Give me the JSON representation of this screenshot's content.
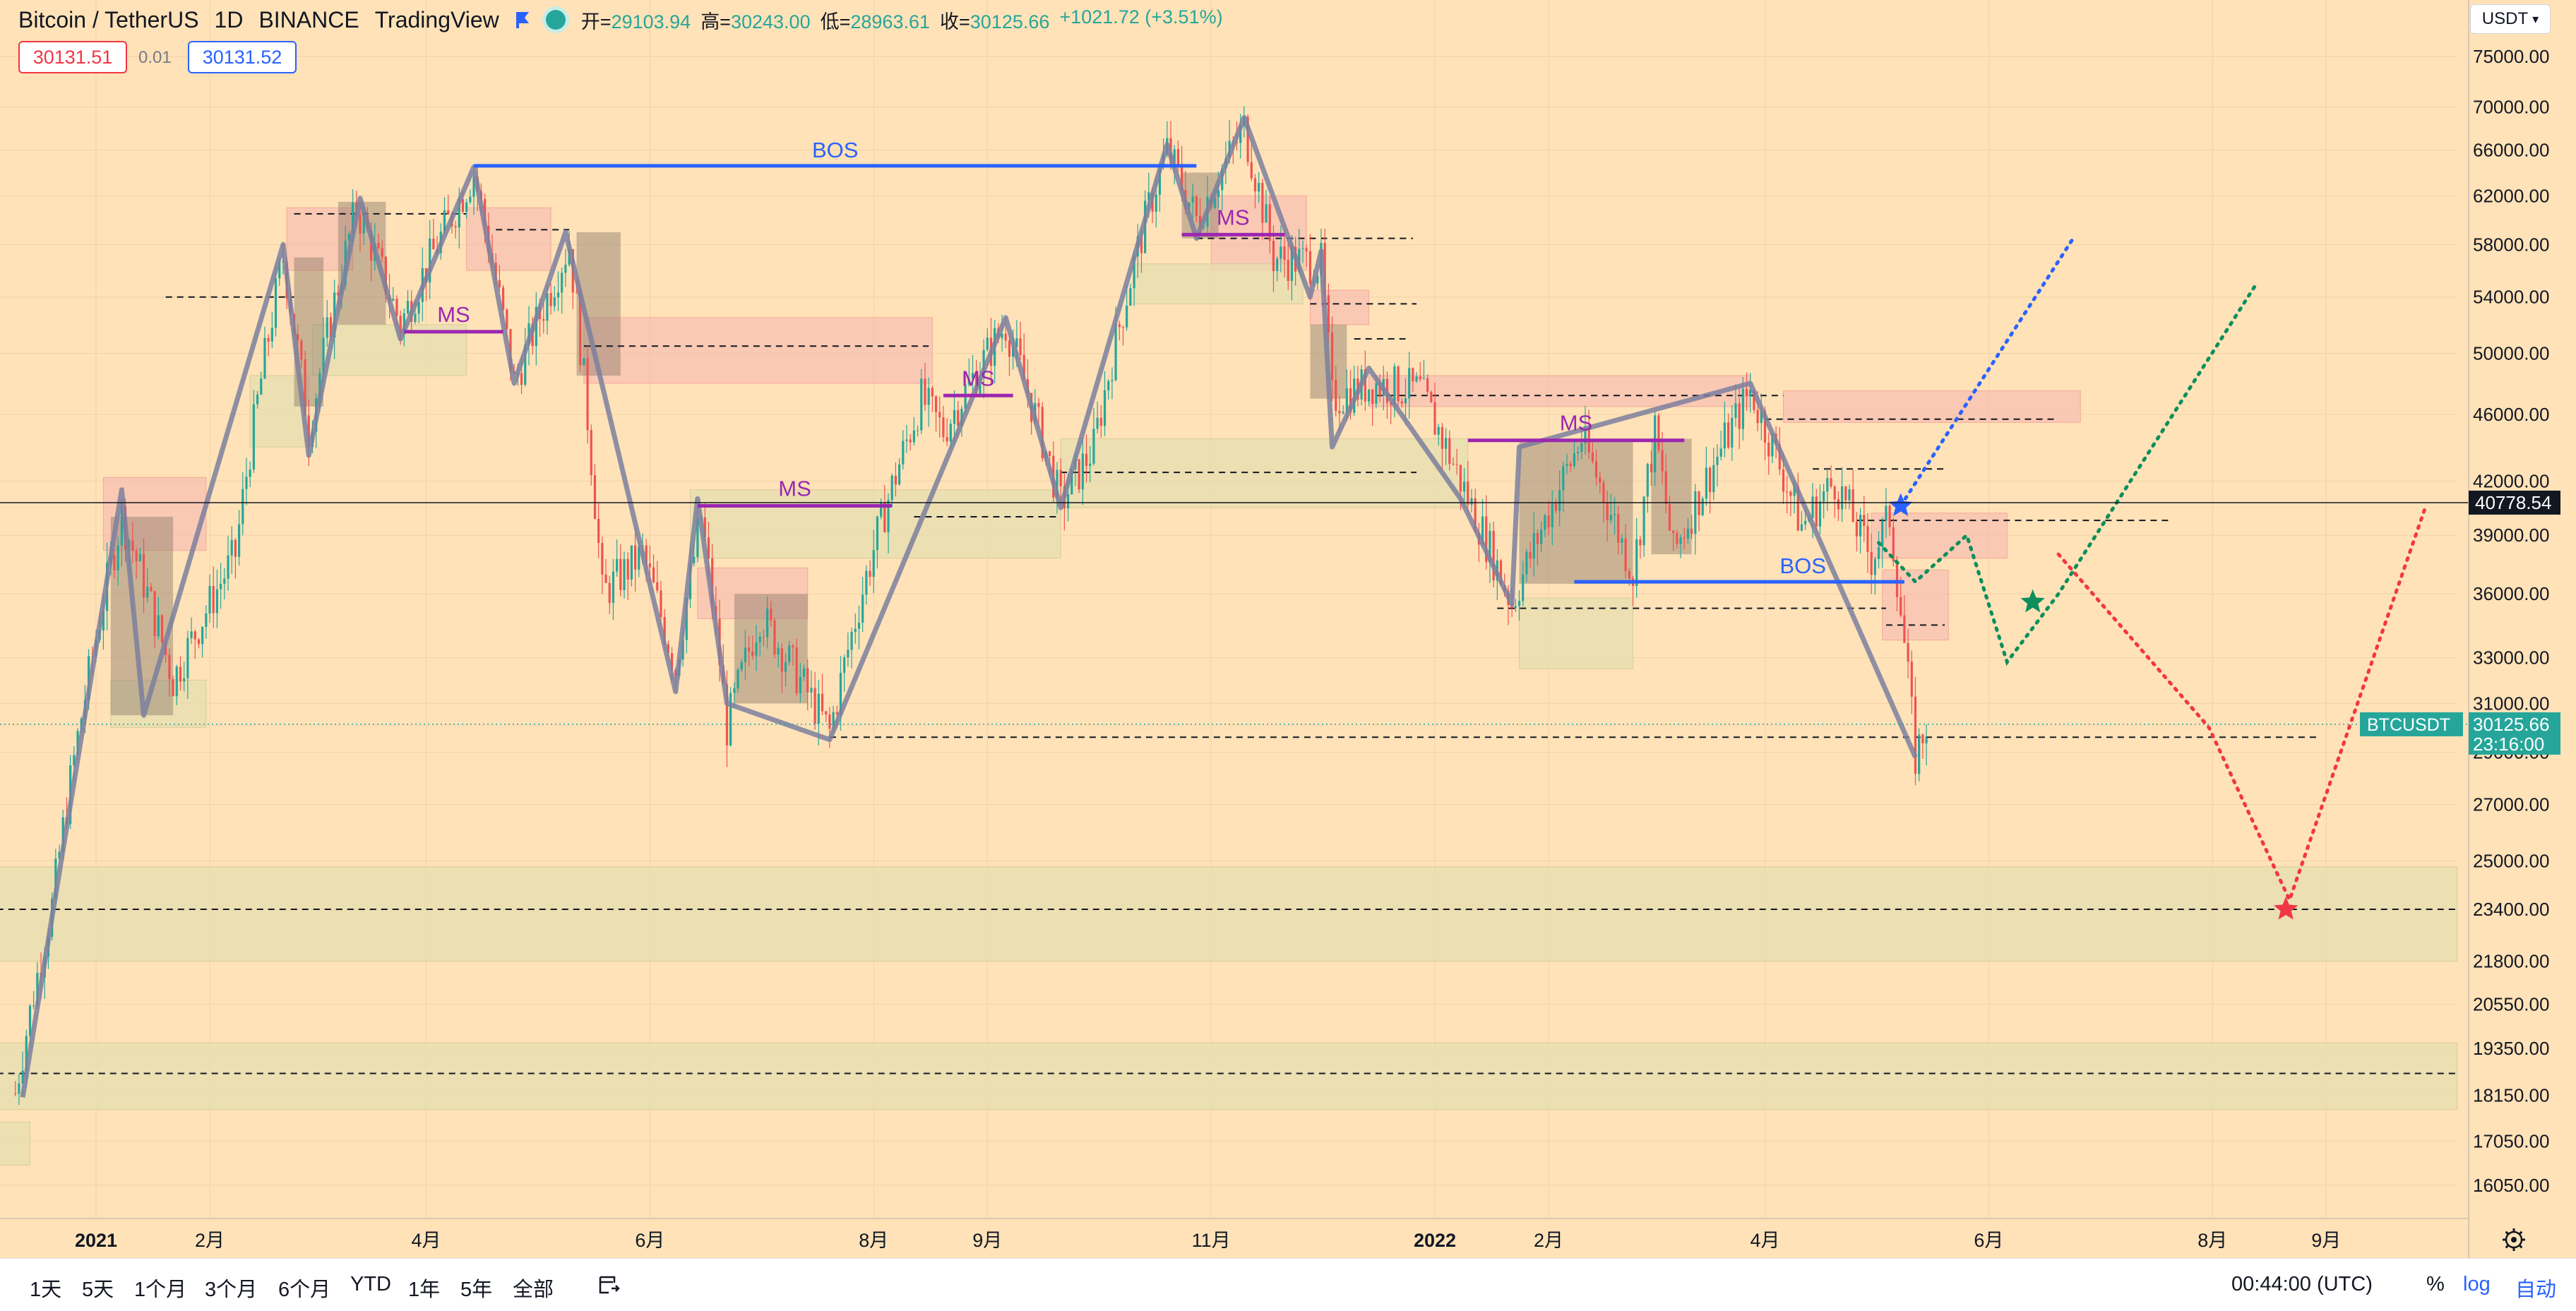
{
  "header": {
    "symbol": "Bitcoin / TetherUS",
    "interval": "1D",
    "exchange": "BINANCE",
    "platform": "TradingView",
    "ohlc": {
      "open_label": "开=",
      "open": "29103.94",
      "high_label": "高=",
      "high": "30243.00",
      "low_label": "低=",
      "low": "28963.61",
      "close_label": "收=",
      "close": "30125.66",
      "change": "+1021.72 (+3.51%)"
    },
    "sell_price": "30131.51",
    "spread": "0.01",
    "buy_price": "30131.52"
  },
  "currency_selector": "USDT",
  "colors": {
    "up": "#26a69a",
    "down": "#ef5350",
    "structure": "#7b7f9e",
    "bos": "#2962ff",
    "ms": "#9c27b0",
    "supply": "#f8bcb0",
    "demand": "#e5ddb0"
  },
  "chart_data": {
    "type": "candlestick",
    "scale": "log",
    "y_ticks": [
      "16050.00",
      "17050.00",
      "18150.00",
      "19350.00",
      "20550.00",
      "21800.00",
      "23400.00",
      "25000.00",
      "27000.00",
      "29000.00",
      "31000.00",
      "33000.00",
      "36000.00",
      "39000.00",
      "42000.00",
      "46000.00",
      "50000.00",
      "54000.00",
      "58000.00",
      "62000.00",
      "66000.00",
      "70000.00",
      "75000.00"
    ],
    "y_ticks_values": [
      16050,
      17050,
      18150,
      19350,
      20550,
      21800,
      23400,
      25000,
      27000,
      29000,
      31000,
      33000,
      36000,
      39000,
      42000,
      46000,
      50000,
      54000,
      58000,
      62000,
      66000,
      70000,
      75000
    ],
    "x_ticks": [
      {
        "label": "2021",
        "date": "2021-01-01",
        "bold": true
      },
      {
        "label": "2月",
        "date": "2021-02-01"
      },
      {
        "label": "4月",
        "date": "2021-04-01"
      },
      {
        "label": "6月",
        "date": "2021-06-01"
      },
      {
        "label": "8月",
        "date": "2021-08-01"
      },
      {
        "label": "9月",
        "date": "2021-09-01"
      },
      {
        "label": "11月",
        "date": "2021-11-01"
      },
      {
        "label": "2022",
        "date": "2022-01-01",
        "bold": true
      },
      {
        "label": "2月",
        "date": "2022-02-01"
      },
      {
        "label": "4月",
        "date": "2022-04-01"
      },
      {
        "label": "6月",
        "date": "2022-06-01"
      },
      {
        "label": "8月",
        "date": "2022-08-01"
      },
      {
        "label": "9月",
        "date": "2022-09-01"
      }
    ],
    "price_path": [
      [
        "2020-12-10",
        18200
      ],
      [
        "2020-12-20",
        23500
      ],
      [
        "2021-01-08",
        40000
      ],
      [
        "2021-01-22",
        32000
      ],
      [
        "2021-02-08",
        38000
      ],
      [
        "2021-02-21",
        57000
      ],
      [
        "2021-02-28",
        45000
      ],
      [
        "2021-03-13",
        61000
      ],
      [
        "2021-03-25",
        52000
      ],
      [
        "2021-04-14",
        64000
      ],
      [
        "2021-04-25",
        48000
      ],
      [
        "2021-05-10",
        58000
      ],
      [
        "2021-05-19",
        36000
      ],
      [
        "2021-05-30",
        38000
      ],
      [
        "2021-06-08",
        32500
      ],
      [
        "2021-06-15",
        40000
      ],
      [
        "2021-06-22",
        30000
      ],
      [
        "2021-07-01",
        35000
      ],
      [
        "2021-07-20",
        29800
      ],
      [
        "2021-08-02",
        39000
      ],
      [
        "2021-08-14",
        47000
      ],
      [
        "2021-08-20",
        45000
      ],
      [
        "2021-09-06",
        52000
      ],
      [
        "2021-09-21",
        40700
      ],
      [
        "2021-09-30",
        44000
      ],
      [
        "2021-10-15",
        61000
      ],
      [
        "2021-10-20",
        66000
      ],
      [
        "2021-10-28",
        60000
      ],
      [
        "2021-11-10",
        68000
      ],
      [
        "2021-11-18",
        57000
      ],
      [
        "2021-12-01",
        56500
      ],
      [
        "2021-12-04",
        47000
      ],
      [
        "2021-12-15",
        48000
      ],
      [
        "2021-12-28",
        47500
      ],
      [
        "2022-01-10",
        41000
      ],
      [
        "2022-01-22",
        35500
      ],
      [
        "2022-01-24",
        36500
      ],
      [
        "2022-02-10",
        44500
      ],
      [
        "2022-02-24",
        37000
      ],
      [
        "2022-03-02",
        44800
      ],
      [
        "2022-03-07",
        38000
      ],
      [
        "2022-03-28",
        47500
      ],
      [
        "2022-04-11",
        39500
      ],
      [
        "2022-04-20",
        42000
      ],
      [
        "2022-04-30",
        37800
      ],
      [
        "2022-05-05",
        40000
      ],
      [
        "2022-05-12",
        28800
      ],
      [
        "2022-05-15",
        30125
      ]
    ],
    "structure_line": [
      [
        "2020-12-12",
        18100
      ],
      [
        "2021-01-08",
        41500
      ],
      [
        "2021-01-14",
        30500
      ],
      [
        "2021-02-21",
        58000
      ],
      [
        "2021-02-28",
        43500
      ],
      [
        "2021-03-14",
        61800
      ],
      [
        "2021-03-25",
        51000
      ],
      [
        "2021-04-14",
        64500
      ],
      [
        "2021-04-25",
        48000
      ],
      [
        "2021-05-09",
        59000
      ],
      [
        "2021-06-08",
        31500
      ],
      [
        "2021-06-14",
        41000
      ],
      [
        "2021-06-22",
        31000
      ],
      [
        "2021-07-20",
        29500
      ],
      [
        "2021-09-06",
        52500
      ],
      [
        "2021-09-21",
        40500
      ],
      [
        "2021-10-20",
        66500
      ],
      [
        "2021-10-28",
        58500
      ],
      [
        "2021-11-10",
        69000
      ],
      [
        "2021-11-28",
        54000
      ],
      [
        "2021-12-01",
        57500
      ],
      [
        "2021-12-04",
        44000
      ],
      [
        "2021-12-14",
        49000
      ],
      [
        "2022-01-08",
        41000
      ],
      [
        "2022-01-22",
        35500
      ],
      [
        "2022-01-24",
        44000
      ],
      [
        "2022-03-28",
        48000
      ],
      [
        "2022-05-12",
        28800
      ]
    ],
    "zones": [
      {
        "kind": "supply",
        "from": "2021-01-03",
        "to": "2021-01-31",
        "low": 38200,
        "high": 42200
      },
      {
        "kind": "supply",
        "from": "2021-02-22",
        "to": "2021-03-12",
        "low": 56000,
        "high": 61000
      },
      {
        "kind": "supply",
        "from": "2021-04-12",
        "to": "2021-05-05",
        "low": 56000,
        "high": 61000
      },
      {
        "kind": "supply",
        "from": "2021-05-14",
        "to": "2021-08-17",
        "low": 48000,
        "high": 52500
      },
      {
        "kind": "supply",
        "from": "2021-06-14",
        "to": "2021-07-14",
        "low": 34800,
        "high": 37300
      },
      {
        "kind": "supply",
        "from": "2021-11-01",
        "to": "2021-11-27",
        "low": 56000,
        "high": 62000
      },
      {
        "kind": "supply",
        "from": "2021-11-28",
        "to": "2021-12-14",
        "low": 52000,
        "high": 54500
      },
      {
        "kind": "supply",
        "from": "2021-12-14",
        "to": "2022-03-28",
        "low": 46500,
        "high": 48500
      },
      {
        "kind": "supply",
        "from": "2022-04-06",
        "to": "2022-06-26",
        "low": 45500,
        "high": 47500
      },
      {
        "kind": "supply",
        "from": "2022-04-30",
        "to": "2022-06-06",
        "low": 37800,
        "high": 40200
      },
      {
        "kind": "supply",
        "from": "2022-05-03",
        "to": "2022-05-21",
        "low": 33800,
        "high": 37200
      },
      {
        "kind": "demand",
        "from": "2021-01-05",
        "to": "2021-01-31",
        "low": 30000,
        "high": 32000
      },
      {
        "kind": "demand",
        "from": "2021-02-12",
        "to": "2021-02-28",
        "low": 44000,
        "high": 48500
      },
      {
        "kind": "demand",
        "from": "2021-03-01",
        "to": "2021-04-12",
        "low": 48500,
        "high": 52000
      },
      {
        "kind": "demand",
        "from": "2021-06-12",
        "to": "2021-09-21",
        "low": 37800,
        "high": 41500
      },
      {
        "kind": "demand",
        "from": "2021-10-11",
        "to": "2021-11-26",
        "low": 53500,
        "high": 56500
      },
      {
        "kind": "demand",
        "from": "2021-09-21",
        "to": "2022-01-10",
        "low": 40500,
        "high": 44500
      },
      {
        "kind": "demand",
        "from": "2022-01-24",
        "to": "2022-02-24",
        "low": 32500,
        "high": 35800
      },
      {
        "kind": "demand",
        "from": "2020-12-05",
        "to": "2022-12-31",
        "low": 21800,
        "high": 24800
      },
      {
        "kind": "demand",
        "from": "2020-12-05",
        "to": "2022-12-31",
        "low": 17800,
        "high": 19500
      },
      {
        "kind": "demand",
        "from": "2020-12-05",
        "to": "2020-12-14",
        "low": 16500,
        "high": 17500
      }
    ],
    "dark_boxes": [
      {
        "from": "2021-01-05",
        "to": "2021-01-22",
        "low": 30500,
        "high": 40000
      },
      {
        "from": "2021-02-24",
        "to": "2021-03-04",
        "low": 46500,
        "high": 57000
      },
      {
        "from": "2021-03-08",
        "to": "2021-03-21",
        "low": 52000,
        "high": 61500
      },
      {
        "from": "2021-05-12",
        "to": "2021-05-24",
        "low": 48500,
        "high": 59000
      },
      {
        "from": "2021-06-24",
        "to": "2021-07-14",
        "low": 31000,
        "high": 36000
      },
      {
        "from": "2021-10-24",
        "to": "2021-11-03",
        "low": 58500,
        "high": 64000
      },
      {
        "from": "2021-11-28",
        "to": "2021-12-08",
        "low": 47000,
        "high": 52000
      },
      {
        "from": "2022-01-24",
        "to": "2022-02-24",
        "low": 36500,
        "high": 44500
      },
      {
        "from": "2022-03-01",
        "to": "2022-03-12",
        "low": 38000,
        "high": 44500
      }
    ],
    "dashed_levels": [
      {
        "from": "2021-01-20",
        "to": "2021-02-24",
        "value": 54000
      },
      {
        "from": "2021-02-24",
        "to": "2021-04-12",
        "value": 60500
      },
      {
        "from": "2021-04-20",
        "to": "2021-05-10",
        "value": 59200
      },
      {
        "from": "2021-05-14",
        "to": "2021-08-16",
        "value": 50500
      },
      {
        "from": "2021-08-12",
        "to": "2021-09-21",
        "value": 40000
      },
      {
        "from": "2021-09-21",
        "to": "2021-12-27",
        "value": 42500
      },
      {
        "from": "2021-10-28",
        "to": "2021-12-26",
        "value": 58500
      },
      {
        "from": "2021-11-28",
        "to": "2021-12-27",
        "value": 53500
      },
      {
        "from": "2021-12-10",
        "to": "2021-12-24",
        "value": 51000
      },
      {
        "from": "2021-12-16",
        "to": "2022-04-06",
        "value": 47200
      },
      {
        "from": "2022-04-01",
        "to": "2022-06-20",
        "value": 45700
      },
      {
        "from": "2022-04-14",
        "to": "2022-05-20",
        "value": 42700
      },
      {
        "from": "2022-04-26",
        "to": "2022-07-20",
        "value": 39800
      },
      {
        "from": "2022-01-18",
        "to": "2022-05-04",
        "value": 35300
      },
      {
        "from": "2022-05-04",
        "to": "2022-05-20",
        "value": 34500
      },
      {
        "from": "2021-07-20",
        "to": "2022-08-30",
        "value": 29600
      },
      {
        "from": "2020-12-05",
        "to": "2022-12-31",
        "value": 23400
      },
      {
        "from": "2020-12-05",
        "to": "2022-12-31",
        "value": 18700
      }
    ],
    "bos_lines": [
      {
        "label": "BOS",
        "from": "2021-04-14",
        "to": "2021-10-28",
        "value": 64600
      },
      {
        "label": "BOS",
        "from": "2022-02-08",
        "to": "2022-05-09",
        "value": 36600
      }
    ],
    "ms_lines": [
      {
        "label": "MS",
        "from": "2021-03-26",
        "to": "2021-04-22",
        "value": 51500
      },
      {
        "label": "MS",
        "from": "2021-06-14",
        "to": "2021-08-06",
        "value": 40600
      },
      {
        "label": "MS",
        "from": "2021-08-20",
        "to": "2021-09-08",
        "value": 47200
      },
      {
        "label": "MS",
        "from": "2021-10-24",
        "to": "2021-11-21",
        "value": 58800
      },
      {
        "label": "MS",
        "from": "2022-01-10",
        "to": "2022-03-10",
        "value": 44400
      }
    ],
    "projections": [
      {
        "color": "#2962ff",
        "points": [
          [
            "2022-05-08",
            40600
          ],
          [
            "2022-06-24",
            58500
          ]
        ]
      },
      {
        "color": "#0c8f5c",
        "points": [
          [
            "2022-05-02",
            38600
          ],
          [
            "2022-05-12",
            36600
          ],
          [
            "2022-05-26",
            39000
          ],
          [
            "2022-06-06",
            32800
          ],
          [
            "2022-06-20",
            36000
          ],
          [
            "2022-08-13",
            55000
          ]
        ]
      },
      {
        "color": "#f23645",
        "points": [
          [
            "2022-06-20",
            38000
          ],
          [
            "2022-07-31",
            30000
          ],
          [
            "2022-08-22",
            23700
          ],
          [
            "2022-09-28",
            40500
          ]
        ]
      }
    ],
    "stars": [
      {
        "color": "#2962ff",
        "date": "2022-05-08",
        "value": 40600
      },
      {
        "color": "#0c8f5c",
        "date": "2022-06-13",
        "value": 35600
      },
      {
        "color": "#f23645",
        "date": "2022-08-21",
        "value": 23400
      }
    ],
    "crosshair_value": 40778.54,
    "crosshair_label": "40778.54",
    "last_price": 30125.66,
    "last_price_label": "30125.66",
    "countdown": "23:16:00",
    "symbol_tag": "BTCUSDT"
  },
  "bottom_bar": {
    "ranges": [
      "1天",
      "5天",
      "1个月",
      "3个月",
      "6个月",
      "YTD",
      "1年",
      "5年",
      "全部"
    ],
    "time": "00:44:00 (UTC)",
    "percent_label": "%",
    "log_label": "log",
    "auto_label": "自动"
  }
}
